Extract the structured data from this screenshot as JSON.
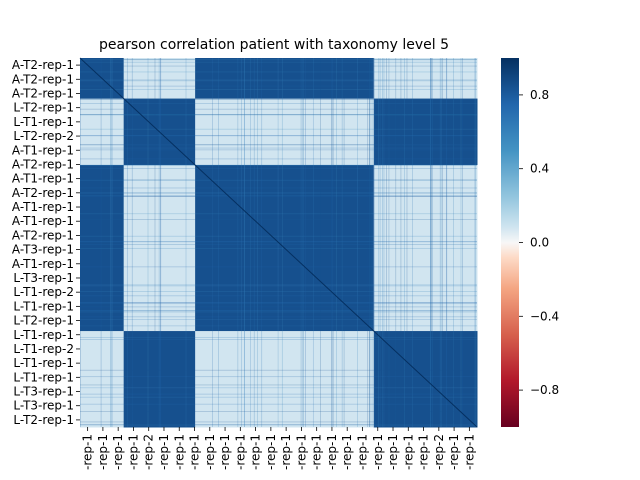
{
  "chart_data": {
    "type": "heatmap",
    "title": "pearson correlation patient with taxonomy level 5",
    "xlabel": "",
    "ylabel": "",
    "ylabels": [
      "A-T2-rep-1",
      "A-T2-rep-1",
      "A-T2-rep-1",
      "L-T2-rep-1",
      "L-T1-rep-1",
      "L-T2-rep-2",
      "A-T1-rep-1",
      "A-T2-rep-1",
      "A-T1-rep-1",
      "A-T2-rep-1",
      "A-T1-rep-1",
      "A-T1-rep-1",
      "A-T2-rep-1",
      "A-T3-rep-1",
      "A-T1-rep-1",
      "L-T3-rep-1",
      "L-T1-rep-2",
      "L-T1-rep-1",
      "L-T2-rep-1",
      "L-T1-rep-1",
      "L-T1-rep-2",
      "L-T1-rep-1",
      "L-T1-rep-1",
      "L-T3-rep-1",
      "L-T3-rep-1",
      "L-T2-rep-1"
    ],
    "xlabels": [
      "-rep-1",
      "-rep-1",
      "-rep-1",
      "-rep-1",
      "-rep-2",
      "-rep-1",
      "-rep-1",
      "-rep-1",
      "-rep-1",
      "-rep-1",
      "-rep-1",
      "-rep-1",
      "-rep-1",
      "-rep-1",
      "-rep-1",
      "-rep-1",
      "-rep-1",
      "-rep-1",
      "-rep-1",
      "-rep-1",
      "-rep-1",
      "-rep-1",
      "-rep-1",
      "-rep-2",
      "-rep-1",
      "-rep-1"
    ],
    "colorbar": {
      "cmap": "RdBu",
      "vmin": -1,
      "vmax": 1,
      "ticks": [
        0.8,
        0.4,
        0.0,
        -0.4,
        -0.8
      ],
      "tick_labels": [
        "0.8",
        "0.4",
        "0.0",
        "−0.4",
        "−0.8"
      ]
    },
    "block_structure": {
      "description_groups": [
        "A",
        "L"
      ],
      "group_order": [
        "A",
        "L",
        "A",
        "L"
      ],
      "group_fraction": [
        0.11,
        0.18,
        0.45,
        0.26
      ],
      "within_group_r": 0.85,
      "between_group_r": 0.08,
      "diagonal_r": 1.0
    }
  }
}
